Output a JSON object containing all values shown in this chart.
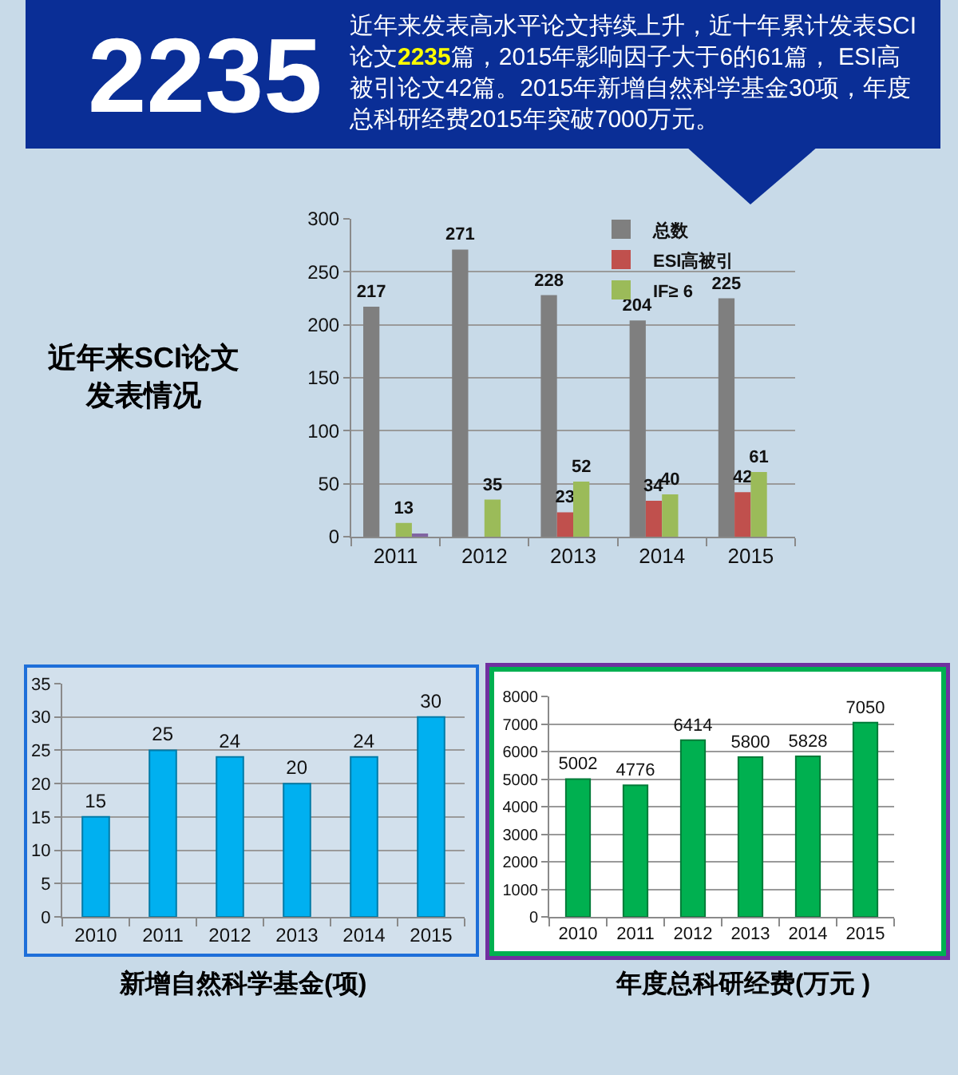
{
  "chart_data": [
    {
      "type": "other",
      "title": "2235",
      "subtitle": "近年来发表高水平论文持续上升，近十年累计发表SCI论文2235篇，2015年影响因子大于6的61篇， ESI高被引论文42篇。2015年新增自然科学基金30项，年度总科研经费2015年突破7000万元。"
    },
    {
      "type": "bar",
      "title": "近年来SCI论文发表情况",
      "categories": [
        "2011",
        "2012",
        "2013",
        "2014",
        "2015"
      ],
      "series": [
        {
          "name": "总数",
          "color": "#7f7f7f",
          "values": [
            217,
            271,
            228,
            204,
            225
          ],
          "value_labels": [
            "217",
            "271",
            "228",
            "204",
            "225"
          ]
        },
        {
          "name": "ESI高被引",
          "color": "#c0504d",
          "values": [
            null,
            null,
            23,
            34,
            42
          ],
          "value_labels": [
            null,
            null,
            "23",
            "34",
            "42"
          ]
        },
        {
          "name": "IF≥ 6",
          "color": "#9bbb59",
          "values": [
            13,
            35,
            52,
            40,
            61
          ],
          "value_labels": [
            "13",
            "35",
            "52",
            "40",
            "61"
          ]
        },
        {
          "color": "#8064a2",
          "values": [
            2,
            null,
            null,
            null,
            null
          ]
        }
      ],
      "ylim": [
        0,
        300
      ],
      "yticks": [
        0,
        50,
        100,
        150,
        200,
        250,
        300
      ],
      "grid": "y",
      "legend": "top right"
    },
    {
      "type": "bar",
      "title": "新增自然科学基金(项)",
      "categories": [
        "2010",
        "2011",
        "2012",
        "2013",
        "2014",
        "2015"
      ],
      "values": [
        15,
        25,
        24,
        20,
        24,
        30
      ],
      "color": "#00b0f0",
      "ylim": [
        0,
        35
      ],
      "yticks": [
        0,
        5,
        10,
        15,
        20,
        25,
        30,
        35
      ],
      "grid": "y",
      "data_labels": true
    },
    {
      "type": "bar",
      "title": "年度总科研经费(万元 )",
      "categories": [
        "2010",
        "2011",
        "2012",
        "2013",
        "2014",
        "2015"
      ],
      "values": [
        5002,
        4776,
        6414,
        5800,
        5828,
        7050
      ],
      "color": "#00b050",
      "ylim": [
        0,
        8000
      ],
      "yticks": [
        0,
        1000,
        2000,
        3000,
        4000,
        5000,
        6000,
        7000,
        8000
      ],
      "grid": "y",
      "data_labels": true
    }
  ]
}
